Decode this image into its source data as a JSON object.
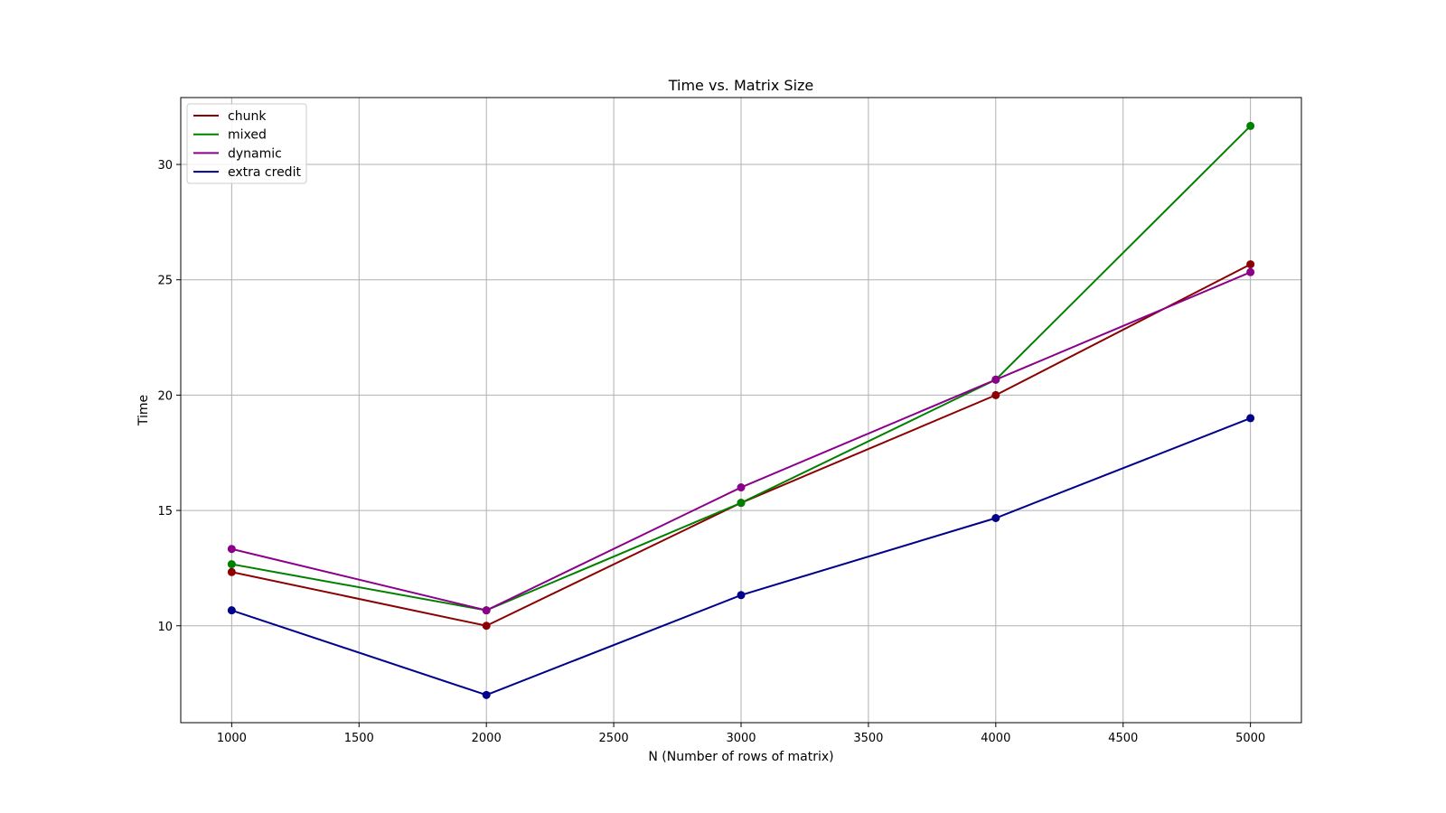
{
  "chart_data": {
    "type": "line",
    "title": "Time vs. Matrix Size",
    "xlabel": "N (Number of rows of matrix)",
    "ylabel": "Time",
    "x": [
      1000,
      2000,
      3000,
      4000,
      5000
    ],
    "xlim": [
      800,
      5200
    ],
    "ylim": [
      5.8,
      32.9
    ],
    "xticks": [
      1000,
      1500,
      2000,
      2500,
      3000,
      3500,
      4000,
      4500,
      5000
    ],
    "yticks": [
      10,
      15,
      20,
      25,
      30
    ],
    "grid": true,
    "markers": true,
    "legend_position": "upper-left",
    "series": [
      {
        "name": "chunk",
        "color": "#8b0000",
        "values": [
          12.33,
          10.0,
          15.33,
          20.0,
          25.67
        ]
      },
      {
        "name": "mixed",
        "color": "#008000",
        "values": [
          12.67,
          10.67,
          15.33,
          20.67,
          31.67
        ]
      },
      {
        "name": "dynamic",
        "color": "#8b008b",
        "values": [
          13.33,
          10.67,
          16.0,
          20.67,
          25.33
        ]
      },
      {
        "name": "extra credit",
        "color": "#00008b",
        "values": [
          10.67,
          7.0,
          11.33,
          14.67,
          19.0
        ]
      }
    ]
  }
}
